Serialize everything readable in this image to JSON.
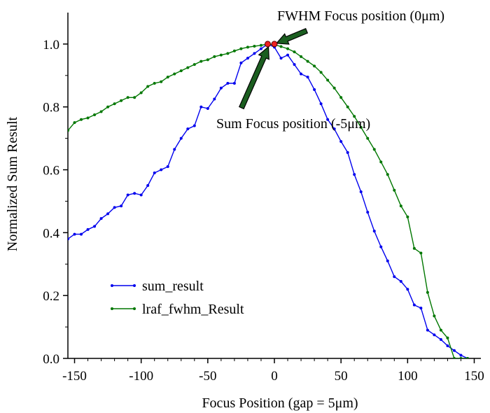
{
  "chart_data": {
    "type": "line",
    "title": "",
    "xlabel": "Focus Position (gap = 5μm)",
    "ylabel": "Normalized Sum Result",
    "xlim": [
      -155,
      155
    ],
    "ylim": [
      0,
      1.1
    ],
    "xticks": [
      -150,
      -100,
      -50,
      0,
      50,
      100,
      150
    ],
    "yticks": [
      0.0,
      0.2,
      0.4,
      0.6,
      0.8,
      1.0
    ],
    "xtick_labels": [
      "-150",
      "-100",
      "-50",
      "0",
      "50",
      "100",
      "150"
    ],
    "ytick_labels": [
      "0.0",
      "0.2",
      "0.4",
      "0.6",
      "0.8",
      "1.0"
    ],
    "grid": false,
    "legend_position": "lower-left",
    "series": [
      {
        "name": "sum_result",
        "color": "#0000ee",
        "x": [
          -155,
          -150,
          -145,
          -140,
          -135,
          -130,
          -125,
          -120,
          -115,
          -110,
          -105,
          -100,
          -95,
          -90,
          -85,
          -80,
          -75,
          -70,
          -65,
          -60,
          -55,
          -50,
          -45,
          -40,
          -35,
          -30,
          -25,
          -20,
          -15,
          -10,
          -5,
          0,
          5,
          10,
          15,
          20,
          25,
          30,
          35,
          40,
          45,
          50,
          55,
          60,
          65,
          70,
          75,
          80,
          85,
          90,
          95,
          100,
          105,
          110,
          115,
          120,
          125,
          130,
          135,
          140,
          145
        ],
        "values": [
          0.38,
          0.395,
          0.395,
          0.41,
          0.42,
          0.445,
          0.46,
          0.48,
          0.485,
          0.52,
          0.525,
          0.52,
          0.55,
          0.59,
          0.6,
          0.61,
          0.665,
          0.7,
          0.73,
          0.74,
          0.8,
          0.795,
          0.825,
          0.86,
          0.875,
          0.875,
          0.94,
          0.955,
          0.97,
          0.985,
          1.0,
          0.99,
          0.955,
          0.965,
          0.935,
          0.905,
          0.895,
          0.855,
          0.81,
          0.76,
          0.73,
          0.69,
          0.655,
          0.585,
          0.53,
          0.465,
          0.405,
          0.355,
          0.31,
          0.26,
          0.245,
          0.22,
          0.17,
          0.16,
          0.09,
          0.075,
          0.06,
          0.04,
          0.025,
          0.01,
          0.0
        ]
      },
      {
        "name": "lraf_fwhm_Result",
        "color": "#007700",
        "x": [
          -155,
          -150,
          -145,
          -140,
          -135,
          -130,
          -125,
          -120,
          -115,
          -110,
          -105,
          -100,
          -95,
          -90,
          -85,
          -80,
          -75,
          -70,
          -65,
          -60,
          -55,
          -50,
          -45,
          -40,
          -35,
          -30,
          -25,
          -20,
          -15,
          -10,
          -5,
          0,
          5,
          10,
          15,
          20,
          25,
          30,
          35,
          40,
          45,
          50,
          55,
          60,
          65,
          70,
          75,
          80,
          85,
          90,
          95,
          100,
          105,
          110,
          115,
          120,
          125,
          130,
          135,
          140,
          145
        ],
        "values": [
          0.725,
          0.75,
          0.76,
          0.765,
          0.775,
          0.785,
          0.8,
          0.81,
          0.82,
          0.83,
          0.83,
          0.845,
          0.865,
          0.875,
          0.88,
          0.895,
          0.905,
          0.915,
          0.925,
          0.935,
          0.945,
          0.95,
          0.96,
          0.965,
          0.97,
          0.978,
          0.985,
          0.99,
          0.993,
          0.996,
          1.0,
          0.998,
          0.992,
          0.985,
          0.975,
          0.96,
          0.945,
          0.93,
          0.91,
          0.885,
          0.86,
          0.83,
          0.8,
          0.77,
          0.735,
          0.7,
          0.665,
          0.625,
          0.585,
          0.535,
          0.485,
          0.45,
          0.35,
          0.335,
          0.21,
          0.135,
          0.09,
          0.065,
          0.0,
          0.0,
          0.0
        ]
      }
    ],
    "markers": [
      {
        "name": "sum-focus-marker",
        "x": -5,
        "y": 1.0,
        "color": "#ee2222"
      },
      {
        "name": "fwhm-focus-marker",
        "x": 0,
        "y": 1.0,
        "color": "#ee2222"
      }
    ],
    "annotations": [
      {
        "name": "fwhm-annotation",
        "text": "FWHM Focus position (0μm)"
      },
      {
        "name": "sum-annotation",
        "text": "Sum Focus position (-5μm)"
      }
    ]
  }
}
